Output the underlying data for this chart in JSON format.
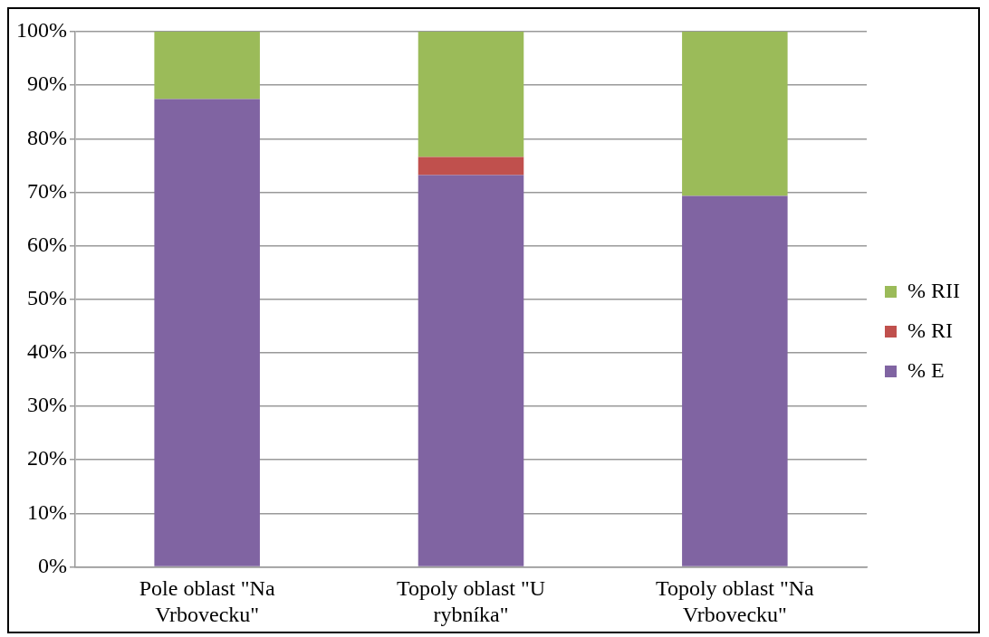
{
  "chart_data": {
    "type": "bar",
    "stacked": true,
    "categories": [
      "Pole oblast \"Na Vrbovecku\"",
      "Topoly oblast \"U rybníka\"",
      "Topoly oblast \"Na Vrbovecku\""
    ],
    "series": [
      {
        "name": "% E",
        "color": "#8064a2",
        "values": [
          87.4,
          73.2,
          69.3
        ]
      },
      {
        "name": "% RI",
        "color": "#c0504d",
        "values": [
          0,
          3.4,
          0
        ]
      },
      {
        "name": "% RII",
        "color": "#9bbb59",
        "values": [
          12.6,
          23.4,
          30.7
        ]
      }
    ],
    "ylim": [
      0,
      100
    ],
    "yticks": [
      {
        "value": 0,
        "label": "0%"
      },
      {
        "value": 10,
        "label": "10%"
      },
      {
        "value": 20,
        "label": "20%"
      },
      {
        "value": 30,
        "label": "30%"
      },
      {
        "value": 40,
        "label": "40%"
      },
      {
        "value": 50,
        "label": "50%"
      },
      {
        "value": 60,
        "label": "60%"
      },
      {
        "value": 70,
        "label": "70%"
      },
      {
        "value": 80,
        "label": "80%"
      },
      {
        "value": 90,
        "label": "90%"
      },
      {
        "value": 100,
        "label": "100%"
      }
    ],
    "grid": "y",
    "legend": "right"
  }
}
